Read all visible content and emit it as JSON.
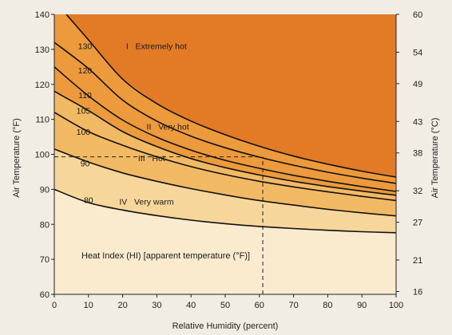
{
  "chart_data": {
    "type": "line",
    "xlabel": "Relative Humidity (percent)",
    "ylabel_left": "Air Temperature (°F)",
    "ylabel_right": "Air Temperature (°C)",
    "xlim": [
      0,
      100
    ],
    "ylim": [
      60,
      140
    ],
    "x_ticks": [
      0,
      10,
      20,
      30,
      40,
      50,
      60,
      70,
      80,
      90,
      100
    ],
    "y_ticks_f": [
      60,
      70,
      80,
      90,
      100,
      110,
      120,
      130,
      140
    ],
    "y_ticks_c": [
      16,
      21,
      27,
      32,
      38,
      43,
      49,
      54,
      60
    ],
    "inner_label": "Heat Index (HI) [apparent temperature (°F)]",
    "colors": {
      "band_1": "#e27a26",
      "band_2": "#ec9a3c",
      "band_3": "#f2b964",
      "band_4": "#f7d69b",
      "band_5": "#faebce",
      "background": "#f1ece4",
      "line": "#111111"
    },
    "zones": [
      {
        "label": "I   Extremely hot",
        "x": 21,
        "y": 131
      },
      {
        "label": "II   Very hot",
        "x": 27,
        "y": 108
      },
      {
        "label": "III   Hot",
        "x": 24.5,
        "y": 99
      },
      {
        "label": "IV   Very warm",
        "x": 19,
        "y": 86.5
      }
    ],
    "series": [
      {
        "name": "130",
        "label_pos": [
          9,
          131
        ],
        "x": [
          3.5,
          10,
          20,
          30,
          40,
          50,
          60,
          70,
          80,
          90,
          100
        ],
        "y": [
          140,
          132.7,
          121.5,
          114.5,
          109.5,
          105.6,
          102.3,
          99.5,
          97.2,
          95.2,
          93.5
        ]
      },
      {
        "name": "120",
        "label_pos": [
          9,
          124
        ],
        "x": [
          0,
          10,
          20,
          30,
          40,
          50,
          60,
          70,
          80,
          90,
          100
        ],
        "y": [
          132,
          124.5,
          115.5,
          109.5,
          105.2,
          101.9,
          99.2,
          96.9,
          94.9,
          93.2,
          91.7
        ]
      },
      {
        "name": "110",
        "label_pos": [
          9,
          117
        ],
        "x": [
          0,
          10,
          20,
          30,
          40,
          50,
          60,
          70,
          80,
          90,
          100
        ],
        "y": [
          125,
          116.7,
          109.8,
          104.9,
          101.2,
          98.3,
          96,
          94,
          92.3,
          90.8,
          89.4
        ]
      },
      {
        "name": "105",
        "label_pos": [
          8.5,
          112.5
        ],
        "x": [
          0,
          10,
          20,
          30,
          40,
          50,
          60,
          70,
          80,
          90,
          100
        ],
        "y": [
          118,
          112.5,
          106.5,
          102.2,
          98.8,
          96.2,
          94.1,
          92.3,
          90.8,
          89.5,
          88.3
        ]
      },
      {
        "name": "100",
        "label_pos": [
          8.5,
          106.5
        ],
        "x": [
          0,
          10,
          20,
          30,
          40,
          50,
          60,
          70,
          80,
          90,
          100
        ],
        "y": [
          112,
          106.5,
          102.6,
          99.3,
          96.5,
          94.2,
          92.3,
          90.7,
          89.3,
          88,
          86.8
        ]
      },
      {
        "name": "90",
        "label_pos": [
          9,
          97.5
        ],
        "x": [
          0,
          10,
          20,
          30,
          40,
          50,
          60,
          70,
          80,
          90,
          100
        ],
        "y": [
          101.5,
          97.8,
          94.7,
          92.3,
          90.2,
          88.4,
          86.8,
          85.5,
          84.3,
          83.3,
          82.4
        ]
      },
      {
        "name": "80",
        "label_pos": [
          10,
          87
        ],
        "x": [
          0,
          10,
          20,
          30,
          40,
          50,
          60,
          70,
          80,
          90,
          100
        ],
        "y": [
          90,
          86.2,
          84.1,
          82.5,
          81.2,
          80.2,
          79.4,
          78.8,
          78.3,
          77.9,
          77.6
        ]
      }
    ],
    "guide_lines": [
      {
        "type": "horizontal",
        "y": 99.3,
        "x_from": 0,
        "x_to": 61
      },
      {
        "type": "vertical",
        "x": 61,
        "y_from": 60,
        "y_to": 99.3
      }
    ]
  }
}
